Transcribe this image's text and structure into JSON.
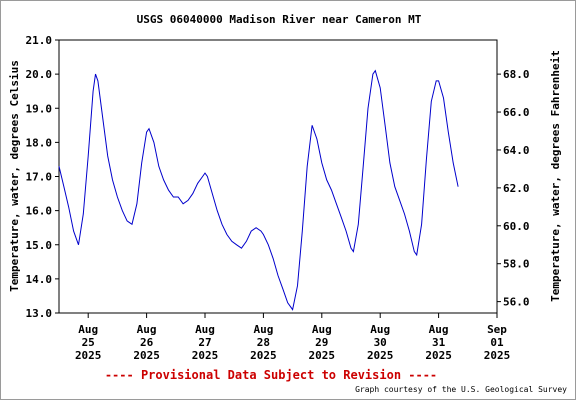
{
  "chart_data": {
    "type": "line",
    "title": "USGS 06040000 Madison River near Cameron MT",
    "ylabel": "Temperature, water, degrees Celsius",
    "y2label": "Temperature, water, degrees Fahrenheit",
    "ylim": [
      13.0,
      21.0
    ],
    "y2lim": [
      55.4,
      69.8
    ],
    "xlim": [
      "2025-08-24 12:00",
      "2025-09-01 00:00"
    ],
    "yticks": [
      "13.0",
      "14.0",
      "15.0",
      "16.0",
      "17.0",
      "18.0",
      "19.0",
      "20.0",
      "21.0"
    ],
    "y2ticks": [
      "56.0",
      "58.0",
      "60.0",
      "62.0",
      "64.0",
      "66.0",
      "68.0"
    ],
    "xticks": [
      {
        "at": "2025-08-25 00:00",
        "month": "Aug",
        "day": "25",
        "year": "2025"
      },
      {
        "at": "2025-08-26 00:00",
        "month": "Aug",
        "day": "26",
        "year": "2025"
      },
      {
        "at": "2025-08-27 00:00",
        "month": "Aug",
        "day": "27",
        "year": "2025"
      },
      {
        "at": "2025-08-28 00:00",
        "month": "Aug",
        "day": "28",
        "year": "2025"
      },
      {
        "at": "2025-08-29 00:00",
        "month": "Aug",
        "day": "29",
        "year": "2025"
      },
      {
        "at": "2025-08-30 00:00",
        "month": "Aug",
        "day": "30",
        "year": "2025"
      },
      {
        "at": "2025-08-31 00:00",
        "month": "Aug",
        "day": "31",
        "year": "2025"
      },
      {
        "at": "2025-09-01 00:00",
        "month": "Sep",
        "day": "01",
        "year": "2025"
      }
    ],
    "grid": false,
    "series": [
      {
        "color": "#0000cc",
        "points": [
          [
            "2025-08-24 12:00",
            17.3
          ],
          [
            "2025-08-24 14:00",
            16.7
          ],
          [
            "2025-08-24 16:00",
            16.1
          ],
          [
            "2025-08-24 18:00",
            15.4
          ],
          [
            "2025-08-24 20:00",
            15.0
          ],
          [
            "2025-08-24 22:00",
            15.9
          ],
          [
            "2025-08-25 00:00",
            17.6
          ],
          [
            "2025-08-25 02:00",
            19.5
          ],
          [
            "2025-08-25 03:00",
            20.0
          ],
          [
            "2025-08-25 04:00",
            19.8
          ],
          [
            "2025-08-25 06:00",
            18.7
          ],
          [
            "2025-08-25 08:00",
            17.6
          ],
          [
            "2025-08-25 10:00",
            16.9
          ],
          [
            "2025-08-25 12:00",
            16.4
          ],
          [
            "2025-08-25 14:00",
            16.0
          ],
          [
            "2025-08-25 16:00",
            15.7
          ],
          [
            "2025-08-25 18:00",
            15.6
          ],
          [
            "2025-08-25 20:00",
            16.2
          ],
          [
            "2025-08-25 22:00",
            17.4
          ],
          [
            "2025-08-26 00:00",
            18.3
          ],
          [
            "2025-08-26 01:00",
            18.4
          ],
          [
            "2025-08-26 03:00",
            18.0
          ],
          [
            "2025-08-26 05:00",
            17.3
          ],
          [
            "2025-08-26 07:00",
            16.9
          ],
          [
            "2025-08-26 09:00",
            16.6
          ],
          [
            "2025-08-26 11:00",
            16.4
          ],
          [
            "2025-08-26 13:00",
            16.4
          ],
          [
            "2025-08-26 15:00",
            16.2
          ],
          [
            "2025-08-26 17:00",
            16.3
          ],
          [
            "2025-08-26 19:00",
            16.5
          ],
          [
            "2025-08-26 21:00",
            16.8
          ],
          [
            "2025-08-26 23:00",
            17.0
          ],
          [
            "2025-08-27 00:00",
            17.1
          ],
          [
            "2025-08-27 01:00",
            17.0
          ],
          [
            "2025-08-27 03:00",
            16.5
          ],
          [
            "2025-08-27 05:00",
            16.0
          ],
          [
            "2025-08-27 07:00",
            15.6
          ],
          [
            "2025-08-27 09:00",
            15.3
          ],
          [
            "2025-08-27 11:00",
            15.1
          ],
          [
            "2025-08-27 13:00",
            15.0
          ],
          [
            "2025-08-27 15:00",
            14.9
          ],
          [
            "2025-08-27 17:00",
            15.1
          ],
          [
            "2025-08-27 19:00",
            15.4
          ],
          [
            "2025-08-27 21:00",
            15.5
          ],
          [
            "2025-08-27 23:00",
            15.4
          ],
          [
            "2025-08-28 00:00",
            15.3
          ],
          [
            "2025-08-28 02:00",
            15.0
          ],
          [
            "2025-08-28 04:00",
            14.6
          ],
          [
            "2025-08-28 06:00",
            14.1
          ],
          [
            "2025-08-28 08:00",
            13.7
          ],
          [
            "2025-08-28 10:00",
            13.3
          ],
          [
            "2025-08-28 12:00",
            13.1
          ],
          [
            "2025-08-28 14:00",
            13.8
          ],
          [
            "2025-08-28 16:00",
            15.4
          ],
          [
            "2025-08-28 18:00",
            17.3
          ],
          [
            "2025-08-28 20:00",
            18.5
          ],
          [
            "2025-08-28 22:00",
            18.1
          ],
          [
            "2025-08-29 00:00",
            17.4
          ],
          [
            "2025-08-29 02:00",
            16.9
          ],
          [
            "2025-08-29 04:00",
            16.6
          ],
          [
            "2025-08-29 06:00",
            16.2
          ],
          [
            "2025-08-29 08:00",
            15.8
          ],
          [
            "2025-08-29 10:00",
            15.4
          ],
          [
            "2025-08-29 12:00",
            14.9
          ],
          [
            "2025-08-29 13:00",
            14.8
          ],
          [
            "2025-08-29 15:00",
            15.6
          ],
          [
            "2025-08-29 17:00",
            17.3
          ],
          [
            "2025-08-29 19:00",
            19.0
          ],
          [
            "2025-08-29 21:00",
            20.0
          ],
          [
            "2025-08-29 22:00",
            20.1
          ],
          [
            "2025-08-30 00:00",
            19.6
          ],
          [
            "2025-08-30 02:00",
            18.5
          ],
          [
            "2025-08-30 04:00",
            17.4
          ],
          [
            "2025-08-30 06:00",
            16.7
          ],
          [
            "2025-08-30 08:00",
            16.3
          ],
          [
            "2025-08-30 10:00",
            15.9
          ],
          [
            "2025-08-30 12:00",
            15.4
          ],
          [
            "2025-08-30 14:00",
            14.8
          ],
          [
            "2025-08-30 15:00",
            14.7
          ],
          [
            "2025-08-30 17:00",
            15.6
          ],
          [
            "2025-08-30 19:00",
            17.5
          ],
          [
            "2025-08-30 21:00",
            19.2
          ],
          [
            "2025-08-30 23:00",
            19.8
          ],
          [
            "2025-08-31 00:00",
            19.8
          ],
          [
            "2025-08-31 02:00",
            19.3
          ],
          [
            "2025-08-31 04:00",
            18.3
          ],
          [
            "2025-08-31 06:00",
            17.4
          ],
          [
            "2025-08-31 08:00",
            16.7
          ]
        ]
      }
    ]
  },
  "footer": {
    "provisional": "---- Provisional Data Subject to Revision ----",
    "credit": "Graph courtesy of the U.S. Geological Survey"
  }
}
